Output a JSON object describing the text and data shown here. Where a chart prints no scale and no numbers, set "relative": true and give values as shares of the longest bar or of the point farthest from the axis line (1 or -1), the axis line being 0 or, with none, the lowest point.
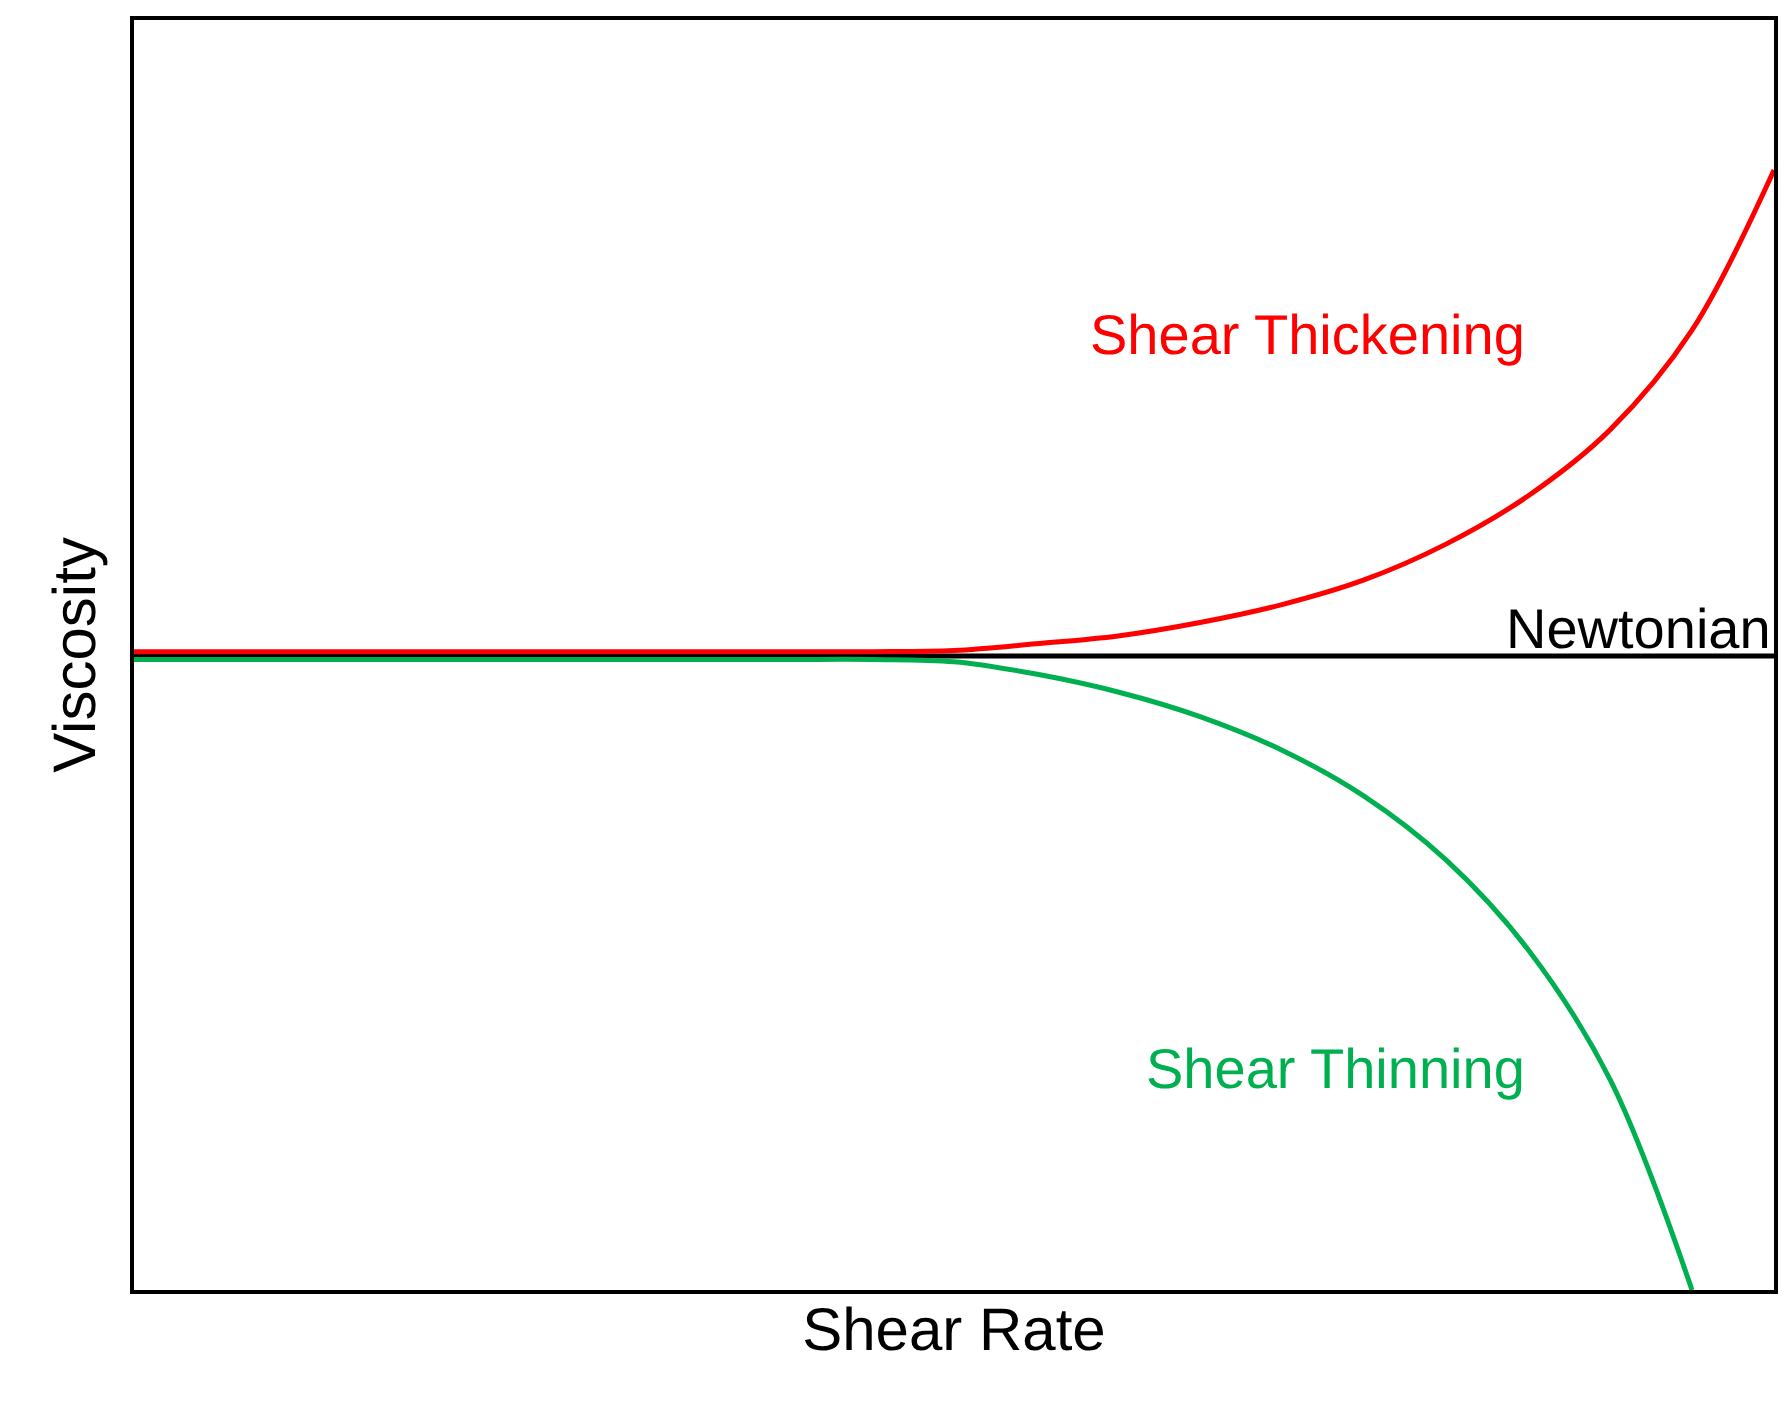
{
  "chart_data": {
    "type": "line",
    "relative": true,
    "xlabel": "Shear Rate",
    "ylabel": "Viscosity",
    "legend": false,
    "marker": "none",
    "line_style": "solid",
    "tick_labels": false,
    "categories": [
      null,
      null,
      null,
      null,
      null,
      null,
      null,
      null,
      null,
      null,
      null,
      null,
      null,
      null,
      null,
      null,
      null,
      null,
      null,
      null,
      null
    ],
    "series": [
      {
        "name": "Newtonian",
        "color": "#000000",
        "values": [
          0.566,
          0.566,
          0.566,
          0.566,
          0.566,
          0.566,
          0.566,
          0.566,
          0.566,
          0.566,
          0.566,
          0.566,
          0.566,
          0.566,
          0.566,
          0.566,
          0.566,
          0.566,
          0.566,
          0.566,
          0.566
        ]
      },
      {
        "name": "Shear Thinning",
        "color": "#00b050",
        "values": [
          0.563,
          0.563,
          0.563,
          0.563,
          0.563,
          0.563,
          0.563,
          0.563,
          0.563,
          0.563,
          0.561,
          0.55,
          0.534,
          0.512,
          0.482,
          0.441,
          0.384,
          0.304,
          0.188,
          0.0,
          null
        ]
      },
      {
        "name": "Shear Thickening",
        "color": "#ff0000",
        "values": [
          0.57,
          0.57,
          0.57,
          0.57,
          0.57,
          0.57,
          0.57,
          0.57,
          0.57,
          0.57,
          0.571,
          0.577,
          0.584,
          0.596,
          0.612,
          0.634,
          0.666,
          0.709,
          0.768,
          0.857,
          1.0
        ]
      }
    ]
  }
}
